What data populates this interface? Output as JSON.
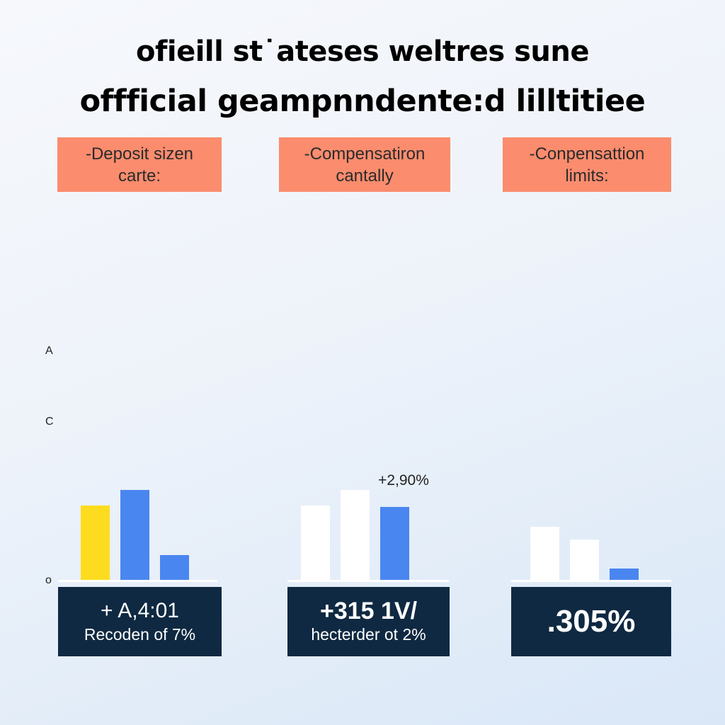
{
  "title": {
    "line1": "ofieill st˙ateses weltres sune",
    "line2": "offficial geampnndente:d lilltitiee"
  },
  "cards": [
    {
      "line1": "-Deposit sizen",
      "line2": "carte:"
    },
    {
      "line1": "-Compensatiron",
      "line2": "cantally"
    },
    {
      "line1": "-Conpensattion",
      "line2": "limits:"
    }
  ],
  "colors": {
    "card": "#fb8c6e",
    "yellow": "#fddc1f",
    "blue": "#4a86f0",
    "white": "#ffffff",
    "stat_bg": "#0f2942",
    "baseline": "#ffffff"
  },
  "chart_data": [
    {
      "type": "bar",
      "y_tick_labels": [
        "A",
        "C",
        "o"
      ],
      "values": [
        105,
        127,
        35
      ],
      "bar_colors": [
        "yellow",
        "blue",
        "blue"
      ],
      "ylim": [
        0,
        340
      ],
      "stat_line1": "+ A,4:01",
      "stat_line2": "Recoden of  7%"
    },
    {
      "type": "bar",
      "annotation": "+2,90%",
      "values": [
        105,
        127,
        103
      ],
      "bar_colors": [
        "white",
        "white",
        "blue"
      ],
      "ylim": [
        0,
        340
      ],
      "stat_line1": "+315 1V/",
      "stat_line2": "hecterder ot 2%"
    },
    {
      "type": "bar",
      "values": [
        75,
        57,
        16
      ],
      "bar_colors": [
        "white",
        "white",
        "blue"
      ],
      "ylim": [
        0,
        340
      ],
      "stat_line1": ".305%"
    }
  ]
}
